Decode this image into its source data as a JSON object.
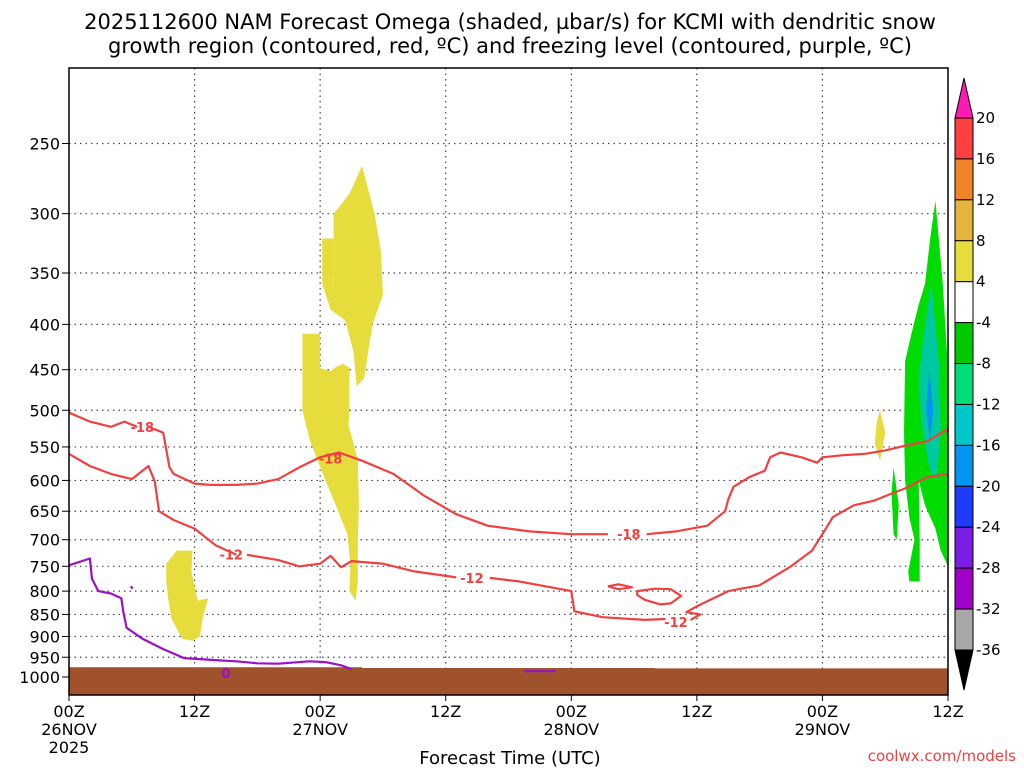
{
  "chart_data": {
    "type": "heatmap",
    "title_line1": "2025112600 NAM Forecast Omega (shaded, µbar/s) for KCMI with dendritic snow",
    "title_line2": "growth region (contoured, red, ºC) and freezing level (contoured, purple, ºC)",
    "xlabel": "Forecast Time (UTC)",
    "credit": "coolwx.com/models",
    "x_ticks": [
      {
        "h": 0,
        "top": "00Z",
        "mid": "26NOV",
        "bot": "2025"
      },
      {
        "h": 12,
        "top": "12Z",
        "mid": "",
        "bot": ""
      },
      {
        "h": 24,
        "top": "00Z",
        "mid": "27NOV",
        "bot": ""
      },
      {
        "h": 36,
        "top": "12Z",
        "mid": "",
        "bot": ""
      },
      {
        "h": 48,
        "top": "00Z",
        "mid": "28NOV",
        "bot": ""
      },
      {
        "h": 60,
        "top": "12Z",
        "mid": "",
        "bot": ""
      },
      {
        "h": 72,
        "top": "00Z",
        "mid": "29NOV",
        "bot": ""
      },
      {
        "h": 84,
        "top": "12Z",
        "mid": "",
        "bot": ""
      }
    ],
    "xlim": [
      0,
      84
    ],
    "y_ticks": [
      250,
      300,
      350,
      400,
      450,
      500,
      550,
      600,
      650,
      700,
      750,
      800,
      850,
      900,
      950,
      1000
    ],
    "ylim": [
      1050,
      200
    ],
    "y_scale": "log",
    "grid": true,
    "colorbar": {
      "labels": [
        "20",
        "16",
        "12",
        "8",
        "4",
        "-4",
        "-8",
        "-12",
        "-16",
        "-20",
        "-24",
        "-28",
        "-32",
        "-36"
      ],
      "colors": [
        "#ff1ab3",
        "#ff4040",
        "#f08428",
        "#e6b43c",
        "#e6dc3c",
        "#ffffff",
        "#00c800",
        "#00dc78",
        "#00c8c8",
        "#0096f0",
        "#1e3cff",
        "#7a1ee6",
        "#a000c8",
        "#a8a8a8",
        "#000000"
      ]
    },
    "colors": {
      "dgz": "#f04040",
      "freezing": "#9a10c8",
      "ground": "#a0522d",
      "rising_light": "#00dc00",
      "rising_mid": "#00c8a0",
      "rising_strong": "#0096f0",
      "sinking": "#e6dc3c"
    },
    "contour_labels": [
      {
        "text": "-18",
        "h": 7.0,
        "p": 522
      },
      {
        "text": "-18",
        "h": 25.0,
        "p": 567
      },
      {
        "text": "-18",
        "h": 53.5,
        "p": 690
      },
      {
        "text": "-12",
        "h": 15.5,
        "p": 727
      },
      {
        "text": "-12",
        "h": 38.5,
        "p": 773
      },
      {
        "text": "-12",
        "h": 58.0,
        "p": 867
      },
      {
        "text": "0",
        "h": 15.0,
        "p": 990
      }
    ],
    "dgz_contours": [
      [
        [
          0,
          503
        ],
        [
          2,
          515
        ],
        [
          4,
          522
        ],
        [
          5.3,
          515
        ],
        [
          6.5,
          522
        ]
      ],
      [
        [
          7.6,
          522
        ],
        [
          9,
          530
        ],
        [
          9.6,
          580
        ],
        [
          10,
          590
        ],
        [
          12,
          605
        ],
        [
          13.5,
          607
        ],
        [
          16,
          607
        ],
        [
          18,
          605
        ],
        [
          20,
          598
        ],
        [
          22,
          580
        ],
        [
          24,
          565
        ],
        [
          25.8,
          558
        ],
        [
          28,
          570
        ],
        [
          31,
          590
        ],
        [
          34,
          625
        ],
        [
          37,
          655
        ],
        [
          40,
          675
        ],
        [
          44,
          685
        ],
        [
          48,
          690
        ],
        [
          51.5,
          690
        ]
      ],
      [
        [
          55.2,
          690
        ],
        [
          58,
          685
        ],
        [
          61,
          675
        ],
        [
          62.7,
          650
        ],
        [
          63,
          630
        ],
        [
          63.5,
          610
        ],
        [
          65,
          595
        ],
        [
          66.5,
          585
        ],
        [
          67,
          565
        ],
        [
          68,
          558
        ],
        [
          70,
          565
        ],
        [
          71.5,
          573
        ],
        [
          72,
          565
        ],
        [
          74,
          562
        ],
        [
          76,
          560
        ],
        [
          78,
          555
        ],
        [
          80,
          548
        ],
        [
          82,
          542
        ],
        [
          84,
          525
        ]
      ],
      [
        [
          0,
          560
        ],
        [
          2,
          578
        ],
        [
          4,
          590
        ],
        [
          6,
          598
        ],
        [
          7.6,
          578
        ],
        [
          8.2,
          602
        ],
        [
          8.6,
          650
        ],
        [
          10,
          665
        ],
        [
          12,
          680
        ],
        [
          14,
          710
        ],
        [
          16,
          728
        ]
      ],
      [
        [
          17,
          728
        ],
        [
          20,
          738
        ],
        [
          22,
          750
        ],
        [
          24,
          745
        ],
        [
          25,
          730
        ],
        [
          26,
          752
        ],
        [
          27,
          740
        ],
        [
          30,
          745
        ],
        [
          33,
          760
        ],
        [
          37,
          772
        ]
      ],
      [
        [
          40.2,
          773
        ],
        [
          43,
          780
        ],
        [
          48,
          800
        ],
        [
          48.3,
          843
        ],
        [
          51,
          856
        ],
        [
          55,
          862
        ],
        [
          57,
          860
        ]
      ],
      [
        [
          59.4,
          862
        ],
        [
          60.3,
          850
        ],
        [
          59,
          845
        ],
        [
          60,
          832
        ],
        [
          63,
          800
        ],
        [
          66,
          788
        ],
        [
          67,
          775
        ],
        [
          69,
          750
        ],
        [
          71,
          720
        ],
        [
          72,
          690
        ],
        [
          73,
          660
        ],
        [
          75,
          640
        ],
        [
          77,
          632
        ],
        [
          78,
          625
        ],
        [
          80,
          612
        ],
        [
          82,
          595
        ],
        [
          84,
          590
        ]
      ],
      [
        [
          51.5,
          790
        ],
        [
          52.5,
          786
        ],
        [
          53.8,
          792
        ],
        [
          52.5,
          796
        ],
        [
          51.5,
          790
        ]
      ],
      [
        [
          54.3,
          800
        ],
        [
          56,
          795
        ],
        [
          57.5,
          796
        ],
        [
          58.5,
          810
        ],
        [
          57.5,
          826
        ],
        [
          56.5,
          828
        ],
        [
          55,
          818
        ],
        [
          54.3,
          808
        ],
        [
          54.3,
          800
        ]
      ]
    ],
    "freezing_contours": [
      [
        [
          0,
          748
        ],
        [
          2,
          735
        ],
        [
          2.2,
          775
        ],
        [
          2.8,
          800
        ],
        [
          4,
          805
        ],
        [
          5,
          815
        ],
        [
          5.2,
          845
        ],
        [
          5.5,
          880
        ],
        [
          7,
          905
        ],
        [
          9,
          930
        ],
        [
          11,
          952
        ],
        [
          14,
          957
        ],
        [
          16,
          960
        ],
        [
          18,
          965
        ],
        [
          20,
          966
        ],
        [
          23,
          960
        ],
        [
          24.5,
          962
        ],
        [
          26,
          970
        ],
        [
          27,
          980
        ]
      ],
      [
        [
          43.5,
          985
        ],
        [
          45,
          985
        ],
        [
          46.5,
          985
        ]
      ],
      [
        [
          5.9,
          790
        ],
        [
          6.1,
          795
        ]
      ]
    ],
    "sinking_polygons": [
      [
        [
          22.3,
          410
        ],
        [
          24,
          410
        ],
        [
          24,
          448
        ],
        [
          25,
          452
        ],
        [
          25.5,
          447
        ],
        [
          26.2,
          443
        ],
        [
          26.8,
          448
        ],
        [
          26.8,
          500
        ],
        [
          26.7,
          520
        ],
        [
          27.2,
          545
        ],
        [
          27.6,
          570
        ],
        [
          27.7,
          640
        ],
        [
          27.6,
          700
        ],
        [
          27.6,
          780
        ],
        [
          27.4,
          820
        ],
        [
          26.8,
          800
        ],
        [
          26.9,
          745
        ],
        [
          26.6,
          690
        ],
        [
          25.5,
          640
        ],
        [
          24.5,
          600
        ],
        [
          23,
          540
        ],
        [
          22.3,
          500
        ],
        [
          22.3,
          410
        ]
      ],
      [
        [
          24.2,
          320
        ],
        [
          25.3,
          320
        ],
        [
          25.3,
          362
        ],
        [
          27.5,
          365
        ],
        [
          27.5,
          400
        ],
        [
          26.3,
          395
        ],
        [
          25,
          385
        ],
        [
          24.2,
          360
        ],
        [
          24.2,
          320
        ]
      ],
      [
        [
          25.3,
          300
        ],
        [
          26.8,
          285
        ],
        [
          28,
          265
        ],
        [
          29.2,
          300
        ],
        [
          29.8,
          330
        ],
        [
          30,
          370
        ],
        [
          29,
          400
        ],
        [
          28.2,
          460
        ],
        [
          27.5,
          470
        ],
        [
          27.2,
          430
        ],
        [
          26.5,
          400
        ],
        [
          25.3,
          362
        ],
        [
          25.3,
          300
        ]
      ],
      [
        [
          9.3,
          745
        ],
        [
          10.3,
          720
        ],
        [
          11.8,
          720
        ],
        [
          11.7,
          760
        ],
        [
          12.3,
          820
        ],
        [
          13.3,
          815
        ],
        [
          12.8,
          855
        ],
        [
          12.5,
          900
        ],
        [
          11.8,
          910
        ],
        [
          10.8,
          905
        ],
        [
          9.8,
          860
        ],
        [
          9.5,
          820
        ],
        [
          9.3,
          780
        ],
        [
          9.3,
          745
        ]
      ],
      [
        [
          77.5,
          500
        ],
        [
          78,
          530
        ],
        [
          77.5,
          570
        ],
        [
          77,
          545
        ],
        [
          77.2,
          515
        ],
        [
          77.5,
          500
        ]
      ]
    ],
    "rising_polygons": [
      {
        "level": "rising_light",
        "pts": [
          [
            82.8,
            290
          ],
          [
            83.5,
            360
          ],
          [
            84,
            450
          ],
          [
            84,
            750
          ],
          [
            83.3,
            720
          ],
          [
            82.8,
            680
          ],
          [
            81.8,
            640
          ],
          [
            81.2,
            600
          ],
          [
            81.3,
            700
          ],
          [
            81.3,
            780
          ],
          [
            80.3,
            780
          ],
          [
            80.2,
            760
          ],
          [
            80.8,
            700
          ],
          [
            80.3,
            660
          ],
          [
            79.9,
            600
          ],
          [
            79.8,
            530
          ],
          [
            79.9,
            440
          ],
          [
            80.5,
            410
          ],
          [
            81.2,
            380
          ],
          [
            81.8,
            360
          ],
          [
            82.3,
            320
          ],
          [
            82.8,
            290
          ]
        ]
      },
      {
        "level": "rising_light",
        "pts": [
          [
            78.8,
            580
          ],
          [
            79.3,
            640
          ],
          [
            79.1,
            700
          ],
          [
            78.8,
            690
          ],
          [
            78.6,
            620
          ],
          [
            78.8,
            580
          ]
        ]
      },
      {
        "level": "rising_mid",
        "pts": [
          [
            82.4,
            360
          ],
          [
            83.2,
            450
          ],
          [
            83.3,
            530
          ],
          [
            82.9,
            600
          ],
          [
            82.2,
            580
          ],
          [
            81.5,
            520
          ],
          [
            81.2,
            460
          ],
          [
            81.7,
            410
          ],
          [
            82.4,
            360
          ]
        ]
      },
      {
        "level": "rising_strong",
        "pts": [
          [
            82.2,
            450
          ],
          [
            82.6,
            500
          ],
          [
            82.3,
            540
          ],
          [
            81.9,
            500
          ],
          [
            82.2,
            450
          ]
        ]
      }
    ]
  }
}
